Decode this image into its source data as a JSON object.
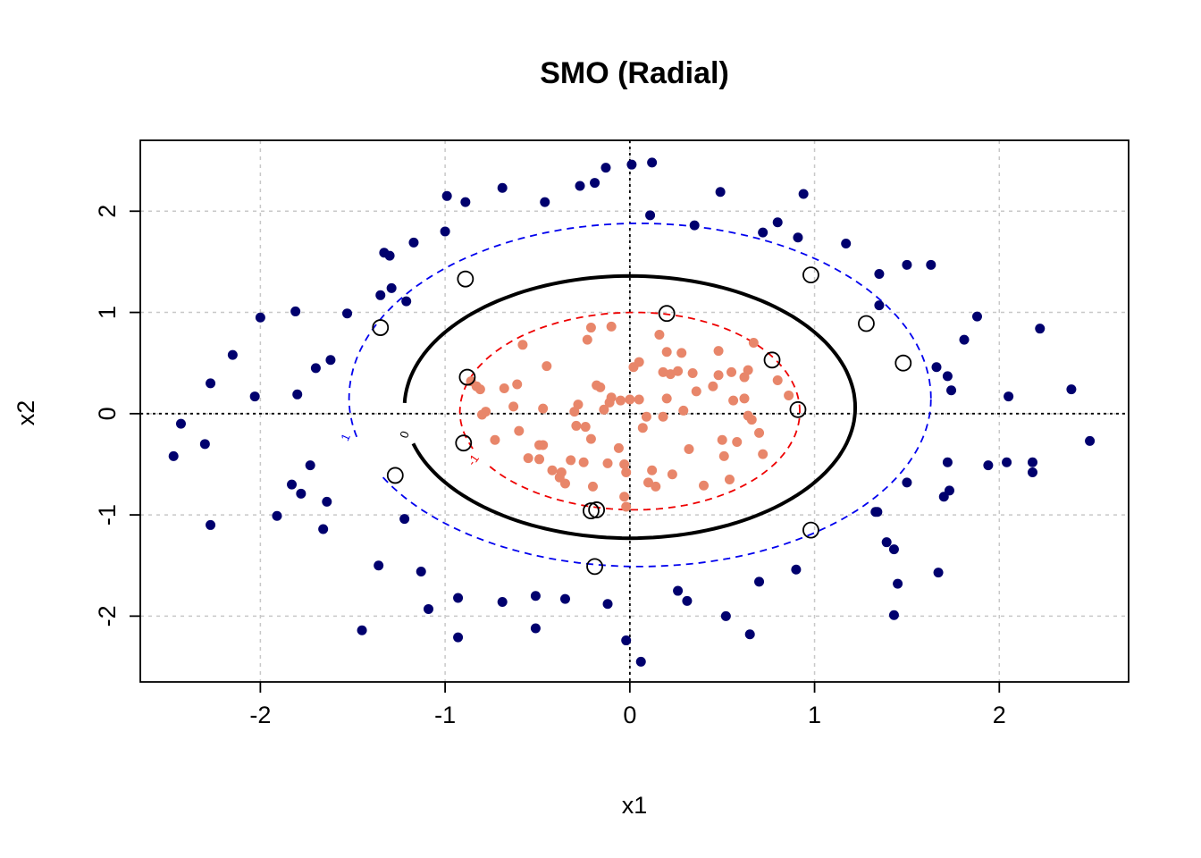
{
  "chart_data": {
    "type": "scatter",
    "title": "SMO (Radial)",
    "xlabel": "x1",
    "ylabel": "x2",
    "xlim": [
      -2.65,
      2.7
    ],
    "ylim": [
      -2.65,
      2.7
    ],
    "x_ticks": [
      -2,
      -1,
      0,
      1,
      2
    ],
    "y_ticks": [
      -2,
      -1,
      0,
      1,
      2
    ],
    "x_tick_labels": [
      "-2",
      "-1",
      "0",
      "1",
      "2"
    ],
    "y_tick_labels": [
      "-2",
      "-1",
      "0",
      "1",
      "2"
    ],
    "grid": true,
    "colors": {
      "outer_class": "#00006e",
      "inner_class": "#e8866a",
      "decision_boundary": "#000000",
      "margin_outer": "#0000ee",
      "margin_inner": "#ee0000",
      "grid": "#c8c8c8"
    },
    "contour_labels": {
      "outer": "1",
      "boundary": "0",
      "inner": "-1"
    },
    "series": [
      {
        "class": "outer",
        "points": [
          [
            -2.47,
            -0.42
          ],
          [
            -2.43,
            -0.1
          ],
          [
            -2.3,
            -0.3
          ],
          [
            -2.27,
            0.3
          ],
          [
            -2.27,
            -1.1
          ],
          [
            -2.15,
            0.58
          ],
          [
            -2.03,
            0.17
          ],
          [
            -2.0,
            0.95
          ],
          [
            -1.91,
            -1.01
          ],
          [
            -1.83,
            -0.7
          ],
          [
            -1.81,
            1.01
          ],
          [
            -1.8,
            0.19
          ],
          [
            -1.78,
            -0.79
          ],
          [
            -1.73,
            -0.51
          ],
          [
            -1.7,
            0.45
          ],
          [
            -1.66,
            -1.14
          ],
          [
            -1.64,
            -0.87
          ],
          [
            -1.62,
            0.53
          ],
          [
            -1.53,
            0.99
          ],
          [
            -1.45,
            -2.14
          ],
          [
            -1.36,
            -1.5
          ],
          [
            -1.35,
            1.17
          ],
          [
            -1.33,
            1.59
          ],
          [
            -1.3,
            1.56
          ],
          [
            -1.29,
            1.24
          ],
          [
            -1.22,
            -1.04
          ],
          [
            -1.21,
            1.11
          ],
          [
            -1.17,
            1.69
          ],
          [
            -1.13,
            -1.56
          ],
          [
            -1.09,
            -1.93
          ],
          [
            -1.0,
            1.8
          ],
          [
            -0.99,
            2.15
          ],
          [
            -0.93,
            -1.82
          ],
          [
            -0.93,
            -2.21
          ],
          [
            -0.89,
            2.09
          ],
          [
            -0.69,
            2.23
          ],
          [
            -0.69,
            -1.86
          ],
          [
            -0.51,
            -1.8
          ],
          [
            -0.51,
            -2.12
          ],
          [
            -0.46,
            2.09
          ],
          [
            -0.35,
            -1.83
          ],
          [
            -0.27,
            2.25
          ],
          [
            -0.19,
            2.28
          ],
          [
            -0.13,
            2.43
          ],
          [
            -0.12,
            -1.88
          ],
          [
            -0.02,
            -2.24
          ],
          [
            0.01,
            2.46
          ],
          [
            0.06,
            -2.45
          ],
          [
            0.12,
            2.48
          ],
          [
            0.11,
            1.96
          ],
          [
            0.26,
            -1.75
          ],
          [
            0.31,
            -1.85
          ],
          [
            0.35,
            1.86
          ],
          [
            0.49,
            2.19
          ],
          [
            0.52,
            -2.0
          ],
          [
            0.65,
            -2.18
          ],
          [
            0.7,
            -1.66
          ],
          [
            0.72,
            1.79
          ],
          [
            0.8,
            1.89
          ],
          [
            0.9,
            -1.54
          ],
          [
            0.91,
            1.74
          ],
          [
            0.94,
            2.17
          ],
          [
            1.17,
            1.68
          ],
          [
            1.34,
            -0.97
          ],
          [
            1.33,
            -0.97
          ],
          [
            1.35,
            1.07
          ],
          [
            1.35,
            1.38
          ],
          [
            1.39,
            -1.27
          ],
          [
            1.43,
            -1.34
          ],
          [
            1.43,
            -1.99
          ],
          [
            1.45,
            -1.68
          ],
          [
            1.5,
            -0.68
          ],
          [
            1.5,
            1.47
          ],
          [
            1.63,
            1.47
          ],
          [
            1.66,
            0.46
          ],
          [
            1.67,
            -1.57
          ],
          [
            1.7,
            -0.82
          ],
          [
            1.72,
            0.37
          ],
          [
            1.72,
            -0.48
          ],
          [
            1.73,
            -0.76
          ],
          [
            1.74,
            0.23
          ],
          [
            1.81,
            0.73
          ],
          [
            1.88,
            0.96
          ],
          [
            1.94,
            -0.51
          ],
          [
            2.04,
            -0.48
          ],
          [
            2.05,
            0.17
          ],
          [
            2.18,
            -0.48
          ],
          [
            2.18,
            -0.58
          ],
          [
            2.22,
            0.84
          ],
          [
            2.39,
            0.24
          ],
          [
            2.49,
            -0.27
          ]
        ]
      },
      {
        "class": "inner",
        "points": [
          [
            -0.86,
            0.32
          ],
          [
            -0.83,
            0.27
          ],
          [
            -0.81,
            0.24
          ],
          [
            -0.8,
            -0.01
          ],
          [
            -0.78,
            0.02
          ],
          [
            -0.73,
            -0.26
          ],
          [
            -0.68,
            0.25
          ],
          [
            -0.63,
            0.07
          ],
          [
            -0.61,
            0.29
          ],
          [
            -0.58,
            0.68
          ],
          [
            -0.55,
            -0.44
          ],
          [
            -0.49,
            -0.31
          ],
          [
            -0.49,
            -0.45
          ],
          [
            -0.47,
            -0.31
          ],
          [
            -0.47,
            0.05
          ],
          [
            -0.45,
            0.47
          ],
          [
            -0.38,
            -0.63
          ],
          [
            -0.37,
            -0.58
          ],
          [
            -0.35,
            -0.69
          ],
          [
            -0.32,
            -0.46
          ],
          [
            -0.3,
            0.02
          ],
          [
            -0.29,
            -0.12
          ],
          [
            -0.28,
            0.09
          ],
          [
            -0.25,
            -0.48
          ],
          [
            -0.24,
            -0.13
          ],
          [
            -0.23,
            0.73
          ],
          [
            -0.21,
            0.85
          ],
          [
            -0.21,
            -0.25
          ],
          [
            -0.18,
            0.28
          ],
          [
            -0.16,
            0.26
          ],
          [
            -0.14,
            0.04
          ],
          [
            -0.12,
            -0.49
          ],
          [
            -0.11,
            0.11
          ],
          [
            -0.1,
            0.86
          ],
          [
            -0.06,
            -0.34
          ],
          [
            -0.03,
            -0.5
          ],
          [
            -0.02,
            -0.58
          ],
          [
            -0.03,
            -0.82
          ],
          [
            -0.02,
            -0.92
          ],
          [
            0.0,
            0.14
          ],
          [
            0.02,
            0.46
          ],
          [
            0.05,
            0.51
          ],
          [
            0.05,
            0.14
          ],
          [
            0.07,
            -0.14
          ],
          [
            0.09,
            -0.03
          ],
          [
            0.12,
            -0.56
          ],
          [
            0.14,
            -0.72
          ],
          [
            0.16,
            0.78
          ],
          [
            0.18,
            -0.03
          ],
          [
            0.18,
            0.41
          ],
          [
            0.2,
            0.15
          ],
          [
            0.2,
            0.61
          ],
          [
            0.22,
            0.39
          ],
          [
            0.23,
            -0.6
          ],
          [
            0.26,
            0.42
          ],
          [
            0.29,
            0.03
          ],
          [
            0.32,
            -0.35
          ],
          [
            0.34,
            0.4
          ],
          [
            0.36,
            0.22
          ],
          [
            0.4,
            -0.71
          ],
          [
            0.45,
            0.27
          ],
          [
            0.48,
            0.38
          ],
          [
            0.5,
            -0.26
          ],
          [
            0.51,
            -0.42
          ],
          [
            0.54,
            -0.65
          ],
          [
            0.55,
            0.41
          ],
          [
            0.58,
            -0.28
          ],
          [
            0.62,
            0.36
          ],
          [
            0.64,
            0.43
          ],
          [
            0.66,
            -0.06
          ],
          [
            0.67,
            0.7
          ],
          [
            0.7,
            -0.19
          ],
          [
            0.72,
            -0.4
          ],
          [
            0.8,
            0.33
          ],
          [
            0.86,
            0.18
          ],
          [
            0.56,
            0.13
          ],
          [
            0.48,
            0.62
          ],
          [
            0.28,
            0.6
          ],
          [
            -0.6,
            -0.17
          ],
          [
            -0.1,
            0.16
          ],
          [
            -0.2,
            -0.72
          ],
          [
            0.1,
            -0.68
          ],
          [
            0.62,
            0.15
          ],
          [
            0.64,
            -0.02
          ],
          [
            -0.42,
            -0.56
          ],
          [
            -0.05,
            0.13
          ]
        ]
      }
    ],
    "support_vectors": [
      [
        -1.35,
        0.85
      ],
      [
        -0.89,
        1.33
      ],
      [
        -0.88,
        0.36
      ],
      [
        -0.9,
        -0.29
      ],
      [
        -1.27,
        -0.61
      ],
      [
        -0.21,
        -0.96
      ],
      [
        -0.18,
        -0.95
      ],
      [
        -0.19,
        -1.51
      ],
      [
        0.2,
        0.99
      ],
      [
        0.77,
        0.53
      ],
      [
        0.91,
        0.04
      ],
      [
        0.98,
        1.37
      ],
      [
        1.28,
        0.89
      ],
      [
        1.48,
        0.5
      ],
      [
        0.98,
        -1.15
      ]
    ]
  }
}
